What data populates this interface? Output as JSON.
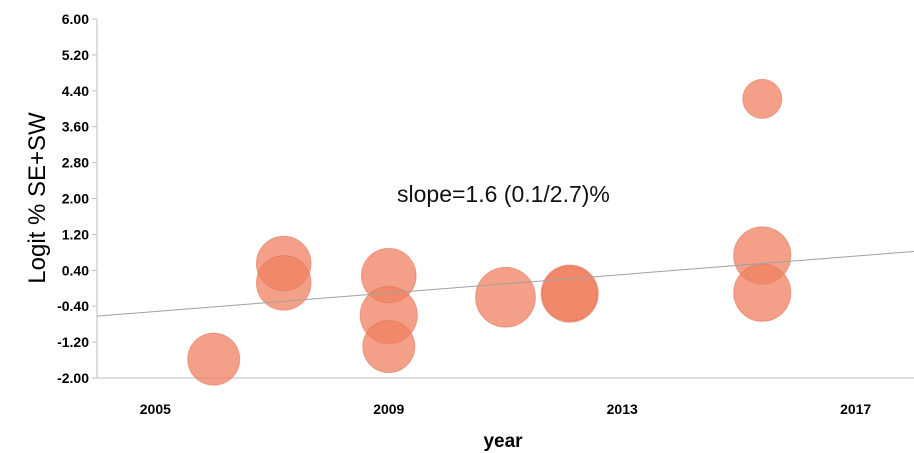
{
  "chart_data": {
    "type": "scatter",
    "title": "",
    "xlabel": "year",
    "ylabel": "Logit  % SE+SW",
    "xlim": [
      2004.0,
      2018.0
    ],
    "ylim": [
      -2.0,
      6.0
    ],
    "x_ticks": [
      "2005",
      "2009",
      "2013",
      "2017"
    ],
    "y_ticks": [
      "6.00",
      "5.20",
      "4.40",
      "3.60",
      "2.80",
      "2.00",
      "1.20",
      "0.40",
      "-0.40",
      "-1.20",
      "-2.00"
    ],
    "grid": false,
    "point_color": "#f08060",
    "trend_color": "#a0a0a0",
    "annotation": "slope=1.6 (0.1/2.7)%",
    "points": [
      {
        "x": 2006.0,
        "y": -1.58,
        "weight": 1.0
      },
      {
        "x": 2007.2,
        "y": 0.55,
        "weight": 1.05
      },
      {
        "x": 2007.2,
        "y": 0.12,
        "weight": 1.05
      },
      {
        "x": 2009.0,
        "y": 0.28,
        "weight": 1.05
      },
      {
        "x": 2009.0,
        "y": -0.6,
        "weight": 1.1
      },
      {
        "x": 2009.0,
        "y": -1.3,
        "weight": 1.0
      },
      {
        "x": 2011.0,
        "y": -0.2,
        "weight": 1.15
      },
      {
        "x": 2012.1,
        "y": -0.12,
        "weight": 1.1
      },
      {
        "x": 2012.1,
        "y": -0.12,
        "weight": 1.05
      },
      {
        "x": 2015.4,
        "y": 4.22,
        "weight": 0.75
      },
      {
        "x": 2015.4,
        "y": 0.73,
        "weight": 1.1
      },
      {
        "x": 2015.4,
        "y": -0.1,
        "weight": 1.1
      }
    ],
    "trend_line": {
      "x": [
        2004.0,
        2018.0
      ],
      "y": [
        -0.62,
        0.82
      ]
    }
  }
}
